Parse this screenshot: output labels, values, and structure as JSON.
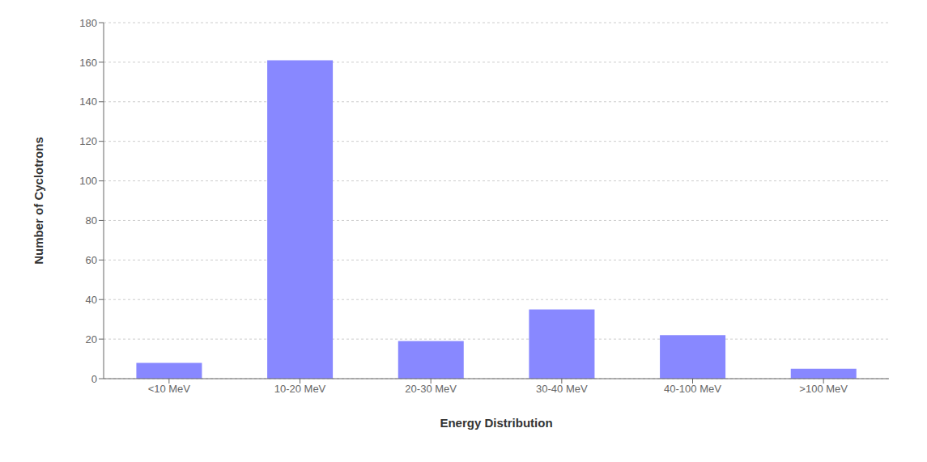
{
  "chart_data": {
    "type": "bar",
    "categories": [
      "<10 MeV",
      "10-20 MeV",
      "20-30 MeV",
      "30-40 MeV",
      "40-100 MeV",
      ">100 MeV"
    ],
    "values": [
      8,
      161,
      19,
      35,
      22,
      5
    ],
    "color": "#8888ff",
    "xlabel": "Energy Distribution",
    "ylabel": "Number of Cyclotrons",
    "ylim": [
      0,
      180
    ],
    "yticks": [
      0,
      20,
      40,
      60,
      80,
      100,
      120,
      140,
      160,
      180
    ],
    "grid": true
  }
}
